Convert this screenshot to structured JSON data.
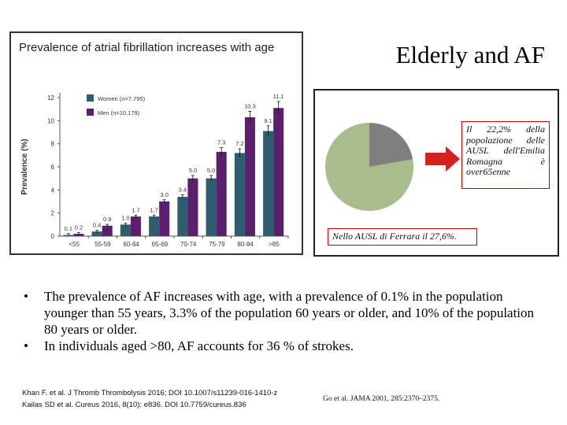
{
  "slide": {
    "title": "Elderly and AF"
  },
  "chart_data": {
    "type": "bar",
    "title": "Prevalence of atrial fibrillation increases with age",
    "ylabel": "Prevalence (%)",
    "xlabel": "",
    "ylim": [
      0,
      12
    ],
    "yticks": [
      "0",
      "2",
      "4",
      "6",
      "8",
      "10",
      "12"
    ],
    "categories": [
      "<55",
      "55-59",
      "60-64",
      "65-69",
      "70-74",
      "75-79",
      "80-84",
      ">85"
    ],
    "legend_position": "top-left",
    "series": [
      {
        "name": "Women (n=7,795)",
        "color": "#2e5d6f",
        "values": [
          0.1,
          0.4,
          1.0,
          1.7,
          3.4,
          5.0,
          7.2,
          9.1
        ],
        "labels": [
          "0.1",
          "0.4",
          "1.0",
          "1.7",
          "3.4",
          "5.0",
          "7.2",
          "9.1"
        ]
      },
      {
        "name": "Men (n=10,179)",
        "color": "#5c1f6e",
        "values": [
          0.2,
          0.9,
          1.7,
          3.0,
          5.0,
          7.3,
          10.3,
          11.1
        ],
        "labels": [
          "0.2",
          "0.9",
          "1.7",
          "3.0",
          "5.0",
          "7.3",
          "10.3",
          "11.1"
        ]
      }
    ]
  },
  "pie": {
    "colors": {
      "gray": "#7f7f7f",
      "green": "#a9bc8e",
      "arrow": "#d42020"
    },
    "callout_text": "Il 22,2% della popolazione delle AUSL dell'Emilia Romagna è over65enne",
    "note_text": "Nello AUSL di Ferrara il 27,6%."
  },
  "bullets": [
    "The prevalence of AF increases with age, with a prevalence of 0.1% in the population younger than 55 years, 3.3% of the population 60 years or older, and 10% of the population 80 years or older.",
    "In individuals aged >80, AF accounts for 36 % of strokes."
  ],
  "bullet_glyph": "•",
  "references": {
    "left_1": "Khan F. et al. J Thromb Thrombolysis 2016; DOI 10.1007/s11239-016-1410-z",
    "left_2": "Kailas SD et al. Cureus 2016, 8(10): e836. DOI 10.7759/cureus.836",
    "right": "Go et al. JAMA 2001, 285:2370–2375."
  }
}
